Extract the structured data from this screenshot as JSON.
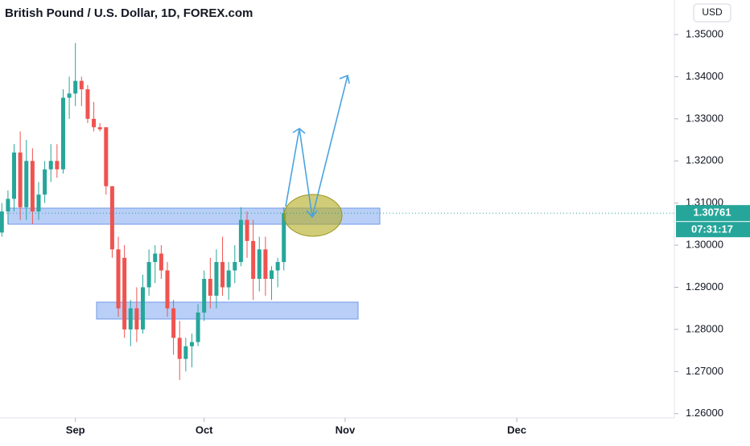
{
  "chart_data": {
    "type": "candlestick",
    "title": "British Pound / U.S. Dollar, 1D, FOREX.com",
    "currency": "USD",
    "countdown": "07:31:17",
    "up_color": "#26a69a",
    "down_color": "#ef5350",
    "x": [
      0,
      1,
      2,
      3,
      4,
      5,
      6,
      7,
      8,
      9,
      10,
      11,
      12,
      13,
      14,
      15,
      16,
      17,
      18,
      19,
      20,
      21,
      22,
      23,
      24,
      25,
      26,
      27,
      28,
      29,
      30,
      31,
      32,
      33,
      34,
      35,
      36,
      37,
      38,
      39,
      40,
      41,
      42,
      43,
      44,
      45,
      46
    ],
    "open": [
      1.303,
      1.308,
      1.311,
      1.322,
      1.309,
      1.32,
      1.308,
      1.312,
      1.318,
      1.32,
      1.318,
      1.335,
      1.336,
      1.339,
      1.337,
      1.33,
      1.328,
      1.328,
      1.314,
      1.299,
      1.297,
      1.28,
      1.285,
      1.28,
      1.29,
      1.296,
      1.298,
      1.294,
      1.285,
      1.278,
      1.273,
      1.276,
      1.277,
      1.284,
      1.292,
      1.288,
      1.296,
      1.29,
      1.294,
      1.296,
      1.306,
      1.301,
      1.292,
      1.299,
      1.292,
      1.294,
      1.296
    ],
    "high": [
      1.31,
      1.313,
      1.324,
      1.327,
      1.325,
      1.323,
      1.315,
      1.32,
      1.324,
      1.324,
      1.337,
      1.34,
      1.348,
      1.34,
      1.338,
      1.334,
      1.329,
      1.328,
      1.314,
      1.302,
      1.3,
      1.287,
      1.29,
      1.293,
      1.299,
      1.3,
      1.3,
      1.296,
      1.287,
      1.282,
      1.278,
      1.279,
      1.286,
      1.294,
      1.297,
      1.299,
      1.302,
      1.296,
      1.3,
      1.309,
      1.308,
      1.306,
      1.302,
      1.302,
      1.295,
      1.297,
      1.309
    ],
    "low": [
      1.302,
      1.305,
      1.308,
      1.306,
      1.306,
      1.305,
      1.306,
      1.31,
      1.315,
      1.316,
      1.317,
      1.33,
      1.333,
      1.333,
      1.329,
      1.327,
      1.327,
      1.312,
      1.297,
      1.283,
      1.278,
      1.276,
      1.277,
      1.279,
      1.288,
      1.291,
      1.292,
      1.283,
      1.274,
      1.268,
      1.27,
      1.271,
      1.276,
      1.282,
      1.285,
      1.285,
      1.288,
      1.287,
      1.291,
      1.295,
      1.297,
      1.287,
      1.289,
      1.288,
      1.287,
      1.29,
      1.294
    ],
    "close": [
      1.308,
      1.311,
      1.322,
      1.309,
      1.32,
      1.308,
      1.312,
      1.318,
      1.32,
      1.318,
      1.335,
      1.336,
      1.339,
      1.337,
      1.33,
      1.328,
      1.3275,
      1.314,
      1.299,
      1.285,
      1.28,
      1.285,
      1.28,
      1.29,
      1.296,
      1.298,
      1.294,
      1.285,
      1.278,
      1.273,
      1.276,
      1.277,
      1.284,
      1.292,
      1.288,
      1.296,
      1.29,
      1.294,
      1.296,
      1.306,
      1.301,
      1.292,
      1.299,
      1.292,
      1.294,
      1.296,
      1.30761
    ],
    "xlim": [
      -0.3,
      109.7
    ],
    "xticks": [
      {
        "value": 12,
        "label": "Sep"
      },
      {
        "value": 33,
        "label": "Oct"
      },
      {
        "value": 56,
        "label": "Nov"
      },
      {
        "value": 84,
        "label": "Dec"
      }
    ],
    "ylim": [
      1.259,
      1.3582
    ],
    "yticks": [
      {
        "value": 1.26,
        "label": "1.26000"
      },
      {
        "value": 1.27,
        "label": "1.27000"
      },
      {
        "value": 1.28,
        "label": "1.28000"
      },
      {
        "value": 1.29,
        "label": "1.29000"
      },
      {
        "value": 1.3,
        "label": "1.30000"
      },
      {
        "value": 1.31,
        "label": "1.31000"
      },
      {
        "value": 1.32,
        "label": "1.32000"
      },
      {
        "value": 1.33,
        "label": "1.33000"
      },
      {
        "value": 1.34,
        "label": "1.34000"
      },
      {
        "value": 1.35,
        "label": "1.35000"
      }
    ],
    "grid": false
  }
}
